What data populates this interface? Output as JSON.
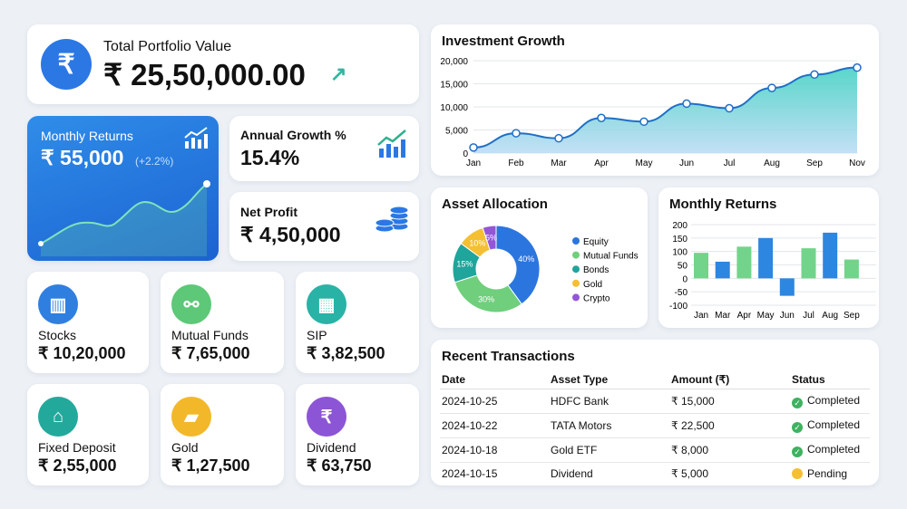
{
  "portfolio": {
    "title": "Total Portfolio Value",
    "value": "₹ 25,50,000.00",
    "icon": "rupee-icon",
    "trend_icon": "arrow-up-right-icon"
  },
  "monthly_card": {
    "title": "Monthly Returns",
    "value": "₹ 55,000",
    "change": "(+2.2%)",
    "icon": "bar-chart-up-icon"
  },
  "annual": {
    "title": "Annual Growth %",
    "value": "15.4%",
    "icon": "growth-chart-icon"
  },
  "net_profit": {
    "title": "Net Profit",
    "value": "₹ 4,50,000",
    "icon": "coins-icon"
  },
  "assets": [
    {
      "label": "Stocks",
      "value": "₹ 10,20,000",
      "icon": "chart-icon",
      "color": "#2f7fe0"
    },
    {
      "label": "Mutual Funds",
      "value": "₹ 7,65,000",
      "icon": "share-icon",
      "color": "#5dc878"
    },
    {
      "label": "SIP",
      "value": "₹ 3,82,500",
      "icon": "calendar-icon",
      "color": "#28b3a6"
    },
    {
      "label": "Fixed Deposit",
      "value": "₹ 2,55,000",
      "icon": "bank-icon",
      "color": "#23a99c"
    },
    {
      "label": "Gold",
      "value": "₹ 1,27,500",
      "icon": "gold-bars-icon",
      "color": "#f2b82a"
    },
    {
      "label": "Dividend",
      "value": "₹ 63,750",
      "icon": "rupee-icon",
      "color": "#8c55d6"
    }
  ],
  "chart_data": [
    {
      "type": "area",
      "title": "Investment Growth",
      "categories": [
        "Jan",
        "Feb",
        "Mar",
        "Apr",
        "May",
        "Jun",
        "Jul",
        "Aug",
        "Sep",
        "Nov"
      ],
      "values": [
        1200,
        4300,
        3200,
        7600,
        6800,
        10700,
        9700,
        14100,
        17000,
        18500
      ],
      "ylim": [
        0,
        20000
      ],
      "yticks": [
        "0",
        "5,000",
        "10,000",
        "15,000",
        "20,000"
      ],
      "grid": true
    },
    {
      "type": "pie",
      "title": "Asset Allocation",
      "categories": [
        "Equity",
        "Mutual Funds",
        "Bonds",
        "Gold",
        "Crypto"
      ],
      "values": [
        40,
        30,
        15,
        10,
        5
      ],
      "labels": [
        "40%",
        "30%",
        "15%",
        "10%",
        "5%"
      ],
      "colors": [
        "#2b76de",
        "#6fcf7c",
        "#1fa59b",
        "#f4bf32",
        "#9356d8"
      ],
      "legend": "right"
    },
    {
      "type": "bar",
      "title": "Monthly Returns",
      "categories": [
        "Jan",
        "Mar",
        "Apr",
        "May",
        "Jun",
        "Jul",
        "Aug",
        "Sep"
      ],
      "values": [
        95,
        62,
        118,
        150,
        -65,
        112,
        170,
        70
      ],
      "colors": [
        "#72d48a",
        "#2d86e0",
        "#72d48a",
        "#2d86e0",
        "#2d86e0",
        "#72d48a",
        "#2d86e0",
        "#72d48a"
      ],
      "ylim": [
        -100,
        200
      ],
      "yticks": [
        "200",
        "150",
        "100",
        "50",
        "0",
        "-50",
        "-100"
      ],
      "grid": true
    }
  ],
  "transactions": {
    "title": "Recent Transactions",
    "headers": [
      "Date",
      "Asset Type",
      "Amount (₹)",
      "Status"
    ],
    "rows": [
      {
        "date": "2024-10-25",
        "asset": "HDFC Bank",
        "amount": "₹ 15,000",
        "status": "Completed"
      },
      {
        "date": "2024-10-22",
        "asset": "TATA Motors",
        "amount": "₹ 22,500",
        "status": "Completed"
      },
      {
        "date": "2024-10-18",
        "asset": "Gold ETF",
        "amount": "₹ 8,000",
        "status": "Completed"
      },
      {
        "date": "2024-10-15",
        "asset": "Dividend",
        "amount": "₹ 5,000",
        "status": "Pending"
      }
    ]
  }
}
